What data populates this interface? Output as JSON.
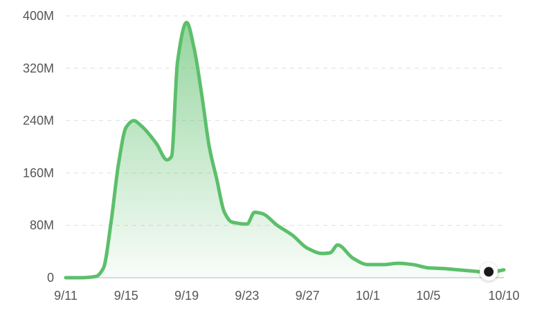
{
  "chart_data": {
    "type": "area",
    "title": "",
    "xlabel": "",
    "ylabel": "",
    "grid": true,
    "x_ticks": [
      "9/11",
      "9/15",
      "9/19",
      "9/23",
      "9/27",
      "10/1",
      "10/5",
      "10/10"
    ],
    "x_tick_days": [
      0,
      4,
      8,
      12,
      16,
      20,
      24,
      29
    ],
    "y_ticks": [
      "0",
      "80M",
      "160M",
      "240M",
      "320M",
      "400M"
    ],
    "y_tick_values": [
      0,
      80,
      160,
      240,
      320,
      400
    ],
    "ylim": [
      0,
      400
    ],
    "xlim": [
      0,
      29
    ],
    "series": [
      {
        "x": [
          "9/11",
          "9/12",
          "9/13",
          "9/13.5",
          "9/14",
          "9/14.5",
          "9/15",
          "9/15.5",
          "9/16",
          "9/17",
          "9/17.7",
          "9/18",
          "9/18.4",
          "9/19",
          "9/19.5",
          "9/20",
          "9/20.5",
          "9/21",
          "9/21.5",
          "9/22",
          "9/23",
          "9/23.5",
          "9/24",
          "9/25",
          "9/26",
          "9/27",
          "9/28",
          "9/28.5",
          "9/29",
          "9/30",
          "10/1",
          "10/2",
          "10/3",
          "10/4",
          "10/5",
          "10/6",
          "10/7",
          "10/8",
          "10/9",
          "10/10"
        ],
        "values": [
          0,
          0,
          2,
          15,
          85,
          175,
          230,
          240,
          232,
          205,
          180,
          185,
          330,
          390,
          350,
          280,
          200,
          150,
          100,
          85,
          82,
          100,
          98,
          80,
          65,
          45,
          37,
          38,
          50,
          30,
          20,
          20,
          22,
          20,
          15,
          14,
          12,
          10,
          8,
          12
        ],
        "color": "#5cbf6b"
      }
    ],
    "current_point": {
      "x": "10/9",
      "value": 8
    }
  }
}
